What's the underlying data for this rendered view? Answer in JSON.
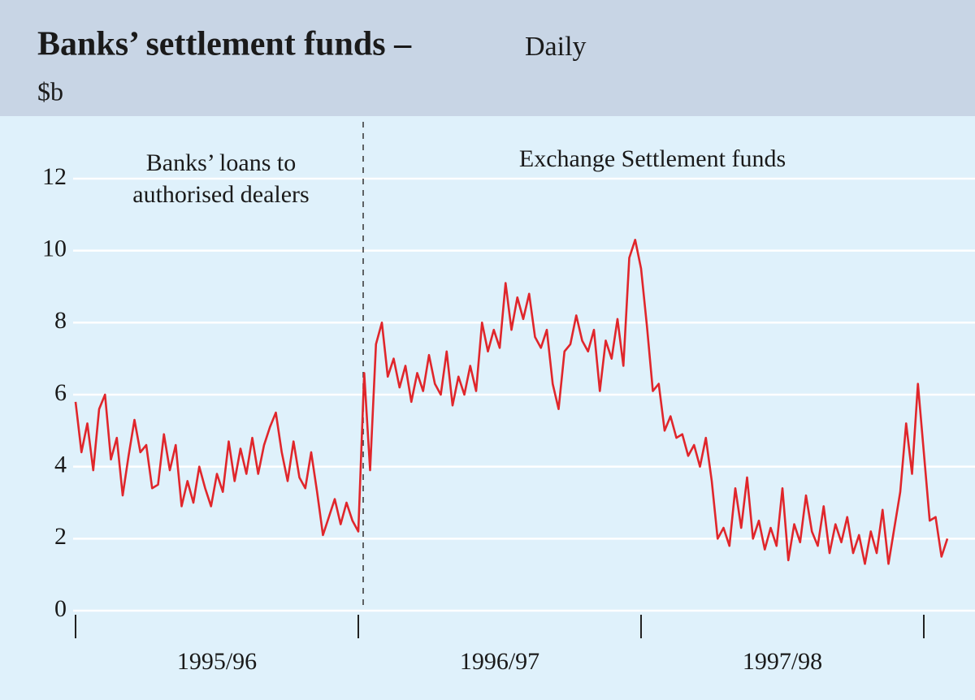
{
  "chart_data": {
    "type": "line",
    "title": "Banks’ settlement funds –",
    "subtitle": "Daily",
    "y_label": "$b",
    "annotations": [
      "Banks’ loans to",
      "authorised dealers",
      "Exchange Settlement funds"
    ],
    "categories": [
      null,
      null,
      null,
      null,
      null,
      null,
      null,
      null,
      null,
      null,
      null,
      null,
      null,
      null,
      null,
      null,
      null,
      null,
      null,
      null,
      null,
      null,
      null,
      null,
      "1995/96",
      null,
      null,
      null,
      null,
      null,
      null,
      null,
      null,
      null,
      null,
      null,
      null,
      null,
      null,
      null,
      null,
      null,
      null,
      null,
      null,
      null,
      null,
      null,
      null,
      null,
      null,
      null,
      null,
      null,
      null,
      null,
      null,
      null,
      null,
      null,
      null,
      null,
      null,
      null,
      null,
      null,
      null,
      null,
      null,
      null,
      null,
      null,
      "1996/97",
      null,
      null,
      null,
      null,
      null,
      null,
      null,
      null,
      null,
      null,
      null,
      null,
      null,
      null,
      null,
      null,
      null,
      null,
      null,
      null,
      null,
      null,
      null,
      null,
      null,
      null,
      null,
      null,
      null,
      null,
      null,
      null,
      null,
      null,
      null,
      null,
      null,
      null,
      null,
      null,
      null,
      null,
      null,
      null,
      null,
      null,
      null,
      "1997/98",
      null,
      null,
      null,
      null,
      null,
      null,
      null,
      null,
      null,
      null,
      null,
      null,
      null,
      null,
      null,
      null,
      null,
      null,
      null,
      null,
      null,
      null,
      null,
      null,
      null,
      null,
      null,
      null
    ],
    "series": [
      {
        "name": "Settlement funds",
        "color": "#e0262b",
        "values": [
          5.8,
          4.4,
          5.2,
          3.9,
          5.6,
          6.0,
          4.2,
          4.8,
          3.2,
          4.3,
          5.3,
          4.4,
          4.6,
          3.4,
          3.5,
          4.9,
          3.9,
          4.6,
          2.9,
          3.6,
          3.0,
          4.0,
          3.4,
          2.9,
          3.8,
          3.3,
          4.7,
          3.6,
          4.5,
          3.8,
          4.8,
          3.8,
          4.6,
          5.1,
          5.5,
          4.4,
          3.6,
          4.7,
          3.7,
          3.4,
          4.4,
          3.3,
          2.1,
          2.6,
          3.1,
          2.4,
          3.0,
          2.5,
          2.2,
          6.6,
          3.9,
          7.4,
          8.0,
          6.5,
          7.0,
          6.2,
          6.8,
          5.8,
          6.6,
          6.1,
          7.1,
          6.3,
          6.0,
          7.2,
          5.7,
          6.5,
          6.0,
          6.8,
          6.1,
          8.0,
          7.2,
          7.8,
          7.3,
          9.1,
          7.8,
          8.7,
          8.1,
          8.8,
          7.6,
          7.3,
          7.8,
          6.3,
          5.6,
          7.2,
          7.4,
          8.2,
          7.5,
          7.2,
          7.8,
          6.1,
          7.5,
          7.0,
          8.1,
          6.8,
          9.8,
          10.3,
          9.5,
          7.9,
          6.1,
          6.3,
          5.0,
          5.4,
          4.8,
          4.9,
          4.3,
          4.6,
          4.0,
          4.8,
          3.6,
          2.0,
          2.3,
          1.8,
          3.4,
          2.3,
          3.7,
          2.0,
          2.5,
          1.7,
          2.3,
          1.8,
          3.4,
          1.4,
          2.4,
          1.9,
          3.2,
          2.2,
          1.8,
          2.9,
          1.6,
          2.4,
          1.9,
          2.6,
          1.6,
          2.1,
          1.3,
          2.2,
          1.6,
          2.8,
          1.3,
          2.3,
          3.3,
          5.2,
          3.8,
          6.3,
          4.4,
          2.5,
          2.6,
          1.5,
          2.0
        ]
      }
    ],
    "ylim": [
      0,
      13.6
    ],
    "yticks": [
      0,
      2,
      4,
      6,
      8,
      10,
      12
    ],
    "grid": true
  }
}
